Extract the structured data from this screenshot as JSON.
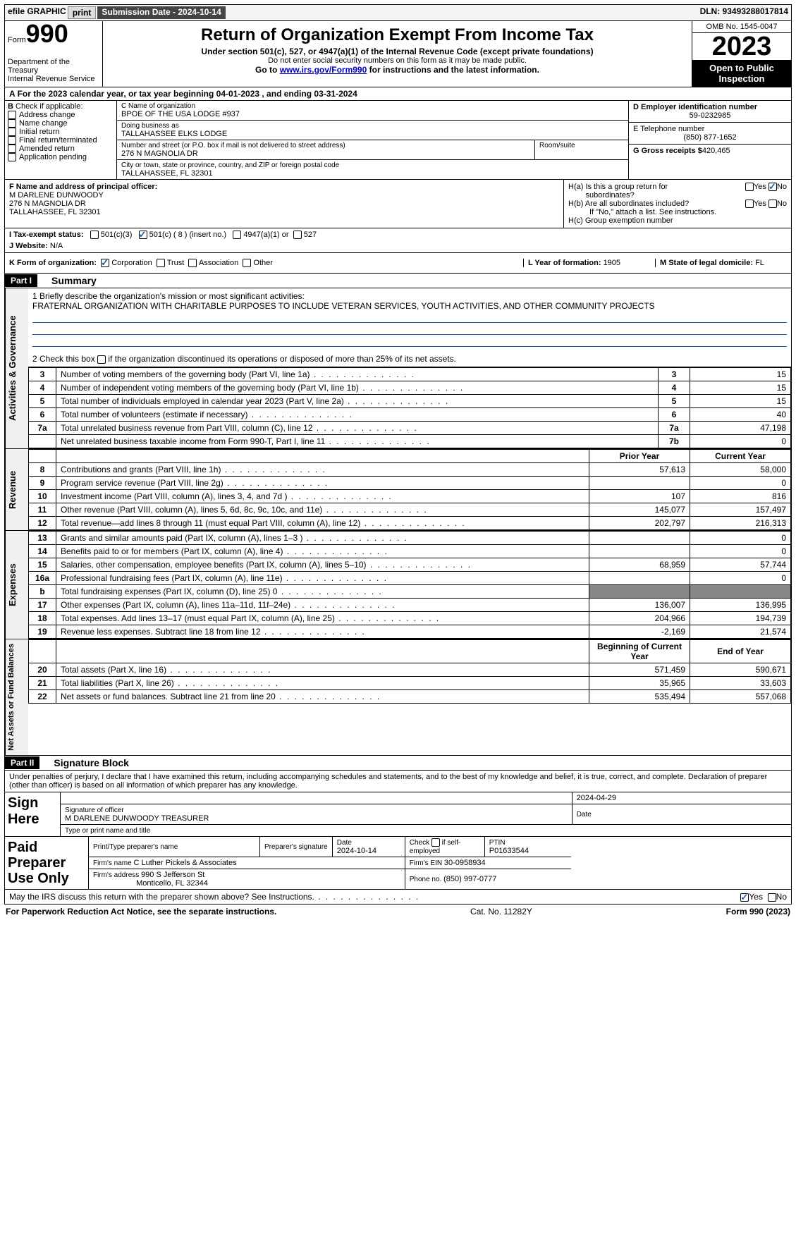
{
  "topbar": {
    "efile_label": "efile GRAPHIC",
    "print_btn": "print",
    "submission_label": "Submission Date - 2024-10-14",
    "dln": "DLN: 93493288017814"
  },
  "header": {
    "form_word": "Form",
    "form_num": "990",
    "dept": "Department of the Treasury",
    "irs": "Internal Revenue Service",
    "title": "Return of Organization Exempt From Income Tax",
    "subtitle": "Under section 501(c), 527, or 4947(a)(1) of the Internal Revenue Code (except private foundations)",
    "ssn_note": "Do not enter social security numbers on this form as it may be made public.",
    "goto_pre": "Go to ",
    "goto_link": "www.irs.gov/Form990",
    "goto_post": " for instructions and the latest information.",
    "omb": "OMB No. 1545-0047",
    "year": "2023",
    "inspect": "Open to Public Inspection"
  },
  "rowA": "For the 2023 calendar year, or tax year beginning 04-01-2023    , and ending 03-31-2024",
  "boxB": {
    "header": "Check if applicable:",
    "items": [
      "Address change",
      "Name change",
      "Initial return",
      "Final return/terminated",
      "Amended return",
      "Application pending"
    ],
    "b_label": "B"
  },
  "boxC": {
    "name_label": "C Name of organization",
    "name": "BPOE OF THE USA LODGE #937",
    "dba_label": "Doing business as",
    "dba": "TALLAHASSEE ELKS LODGE",
    "street_label": "Number and street (or P.O. box if mail is not delivered to street address)",
    "street": "276 N MAGNOLIA DR",
    "room_label": "Room/suite",
    "city_label": "City or town, state or province, country, and ZIP or foreign postal code",
    "city": "TALLAHASSEE, FL  32301"
  },
  "boxD": {
    "ein_label": "D Employer identification number",
    "ein": "59-0232985",
    "phone_label": "E Telephone number",
    "phone": "(850) 877-1652",
    "gross_label": "G Gross receipts $",
    "gross": "420,465"
  },
  "boxF": {
    "label": "F  Name and address of principal officer:",
    "name": "M DARLENE DUNWOODY",
    "addr1": "276 N MAGNOLIA DR",
    "addr2": "TALLAHASSEE, FL  32301"
  },
  "boxH": {
    "a_label": "H(a)  Is this a group return for",
    "a_sub": "subordinates?",
    "b_label": "H(b)  Are all subordinates included?",
    "b_note": "If \"No,\" attach a list. See instructions.",
    "c_label": "H(c)  Group exemption number ",
    "yes": "Yes",
    "no": "No"
  },
  "rowI": {
    "label": "I    Tax-exempt status:",
    "o1": "501(c)(3)",
    "o2": "501(c) ( 8 ) (insert no.)",
    "o3": "4947(a)(1) or",
    "o4": "527"
  },
  "rowJ": {
    "label": "J    Website:  ",
    "val": "N/A"
  },
  "rowK": {
    "label": "K Form of organization:",
    "o1": "Corporation",
    "o2": "Trust",
    "o3": "Association",
    "o4": "Other",
    "l_label": "L Year of formation: ",
    "l_val": "1905",
    "m_label": "M State of legal domicile: ",
    "m_val": "FL"
  },
  "part1": {
    "hdr": "Part I",
    "title": "Summary",
    "m1_label": "1   Briefly describe the organization's mission or most significant activities:",
    "m1_text": "FRATERNAL ORGANIZATION WITH CHARITABLE PURPOSES TO INCLUDE VETERAN SERVICES, YOUTH ACTIVITIES, AND OTHER COMMUNITY PROJECTS",
    "m2_label": "2   Check this box ",
    "m2_post": " if the organization discontinued its operations or disposed of more than 25% of its net assets.",
    "side1": "Activities & Governance",
    "side2": "Revenue",
    "side3": "Expenses",
    "side4": "Net Assets or Fund Balances",
    "lines_gov": [
      {
        "n": "3",
        "d": "Number of voting members of the governing body (Part VI, line 1a)",
        "r": "3",
        "v": "15"
      },
      {
        "n": "4",
        "d": "Number of independent voting members of the governing body (Part VI, line 1b)",
        "r": "4",
        "v": "15"
      },
      {
        "n": "5",
        "d": "Total number of individuals employed in calendar year 2023 (Part V, line 2a)",
        "r": "5",
        "v": "15"
      },
      {
        "n": "6",
        "d": "Total number of volunteers (estimate if necessary)",
        "r": "6",
        "v": "40"
      },
      {
        "n": "7a",
        "d": "Total unrelated business revenue from Part VIII, column (C), line 12",
        "r": "7a",
        "v": "47,198"
      },
      {
        "n": "",
        "d": "Net unrelated business taxable income from Form 990-T, Part I, line 11",
        "r": "7b",
        "v": "0"
      }
    ],
    "col_prior": "Prior Year",
    "col_curr": "Current Year",
    "lines_rev": [
      {
        "n": "8",
        "d": "Contributions and grants (Part VIII, line 1h)",
        "p": "57,613",
        "c": "58,000"
      },
      {
        "n": "9",
        "d": "Program service revenue (Part VIII, line 2g)",
        "p": "",
        "c": "0"
      },
      {
        "n": "10",
        "d": "Investment income (Part VIII, column (A), lines 3, 4, and 7d )",
        "p": "107",
        "c": "816"
      },
      {
        "n": "11",
        "d": "Other revenue (Part VIII, column (A), lines 5, 6d, 8c, 9c, 10c, and 11e)",
        "p": "145,077",
        "c": "157,497"
      },
      {
        "n": "12",
        "d": "Total revenue—add lines 8 through 11 (must equal Part VIII, column (A), line 12)",
        "p": "202,797",
        "c": "216,313"
      }
    ],
    "lines_exp": [
      {
        "n": "13",
        "d": "Grants and similar amounts paid (Part IX, column (A), lines 1–3 )",
        "p": "",
        "c": "0"
      },
      {
        "n": "14",
        "d": "Benefits paid to or for members (Part IX, column (A), line 4)",
        "p": "",
        "c": "0"
      },
      {
        "n": "15",
        "d": "Salaries, other compensation, employee benefits (Part IX, column (A), lines 5–10)",
        "p": "68,959",
        "c": "57,744"
      },
      {
        "n": "16a",
        "d": "Professional fundraising fees (Part IX, column (A), line 11e)",
        "p": "",
        "c": "0"
      },
      {
        "n": "b",
        "d": "Total fundraising expenses (Part IX, column (D), line 25) 0",
        "p": "SHADE",
        "c": "SHADE"
      },
      {
        "n": "17",
        "d": "Other expenses (Part IX, column (A), lines 11a–11d, 11f–24e)",
        "p": "136,007",
        "c": "136,995"
      },
      {
        "n": "18",
        "d": "Total expenses. Add lines 13–17 (must equal Part IX, column (A), line 25)",
        "p": "204,966",
        "c": "194,739"
      },
      {
        "n": "19",
        "d": "Revenue less expenses. Subtract line 18 from line 12",
        "p": "-2,169",
        "c": "21,574"
      }
    ],
    "col_begin": "Beginning of Current Year",
    "col_end": "End of Year",
    "lines_net": [
      {
        "n": "20",
        "d": "Total assets (Part X, line 16)",
        "p": "571,459",
        "c": "590,671"
      },
      {
        "n": "21",
        "d": "Total liabilities (Part X, line 26)",
        "p": "35,965",
        "c": "33,603"
      },
      {
        "n": "22",
        "d": "Net assets or fund balances. Subtract line 21 from line 20",
        "p": "535,494",
        "c": "557,068"
      }
    ]
  },
  "part2": {
    "hdr": "Part II",
    "title": "Signature Block",
    "decl": "Under penalties of perjury, I declare that I have examined this return, including accompanying schedules and statements, and to the best of my knowledge and belief, it is true, correct, and complete. Declaration of preparer (other than officer) is based on all information of which preparer has any knowledge."
  },
  "sign": {
    "lbl": "Sign Here",
    "sig_of_officer": "Signature of officer",
    "officer": "M DARLENE DUNWOODY  TREASURER",
    "title_lbl": "Type or print name and title",
    "date_lbl": "Date",
    "date_val": "2024-04-29"
  },
  "paid": {
    "lbl": "Paid Preparer Use Only",
    "h1": "Print/Type preparer's name",
    "h2": "Preparer's signature",
    "h3": "Date",
    "date_val": "2024-10-14",
    "h4": "Check",
    "h4b": "if self-employed",
    "h5": "PTIN",
    "ptin": "P01633544",
    "firm_name_lbl": "Firm's name    ",
    "firm_name": "C Luther Pickels & Associates",
    "firm_ein_lbl": "Firm's EIN  ",
    "firm_ein": "30-0958934",
    "firm_addr_lbl": "Firm's address ",
    "firm_addr1": "990 S Jefferson St",
    "firm_addr2": "Monticello, FL  32344",
    "phone_lbl": "Phone no. ",
    "phone": "(850) 997-0777"
  },
  "irs_q": {
    "q": "May the IRS discuss this return with the preparer shown above? See Instructions.",
    "yes": "Yes",
    "no": "No"
  },
  "footer": {
    "left": "For Paperwork Reduction Act Notice, see the separate instructions.",
    "mid": "Cat. No. 11282Y",
    "right": "Form 990 (2023)"
  }
}
